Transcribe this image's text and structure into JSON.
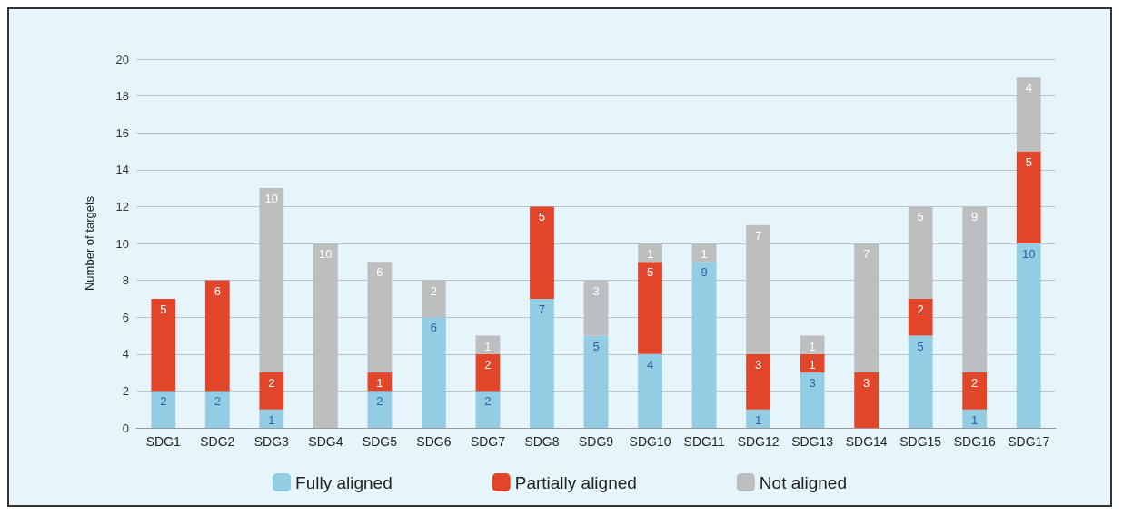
{
  "chart_data": {
    "type": "bar",
    "stacked": true,
    "ylabel": "Number of targets",
    "categories": [
      "SDG1",
      "SDG2",
      "SDG3",
      "SDG4",
      "SDG5",
      "SDG6",
      "SDG7",
      "SDG8",
      "SDG9",
      "SDG10",
      "SDG11",
      "SDG12",
      "SDG13",
      "SDG14",
      "SDG15",
      "SDG16",
      "SDG17"
    ],
    "series": [
      {
        "name": "Fully aligned",
        "color": "#92cde3",
        "values": [
          2,
          2,
          1,
          null,
          2,
          6,
          2,
          7,
          5,
          4,
          9,
          1,
          3,
          null,
          5,
          1,
          10
        ]
      },
      {
        "name": "Partially aligned",
        "color": "#e2462a",
        "values": [
          5,
          6,
          2,
          null,
          1,
          null,
          2,
          5,
          null,
          5,
          null,
          3,
          1,
          3,
          2,
          2,
          5
        ]
      },
      {
        "name": "Not aligned",
        "color": "#bdbec0",
        "values": [
          null,
          null,
          10,
          10,
          6,
          2,
          1,
          null,
          3,
          1,
          1,
          7,
          1,
          7,
          5,
          9,
          4
        ]
      }
    ],
    "ylim": [
      0,
      20
    ],
    "yticks": [
      0,
      2,
      4,
      6,
      8,
      10,
      12,
      14,
      16,
      18,
      20
    ],
    "grid": "y",
    "legend": "bottom",
    "data_labels": true
  }
}
